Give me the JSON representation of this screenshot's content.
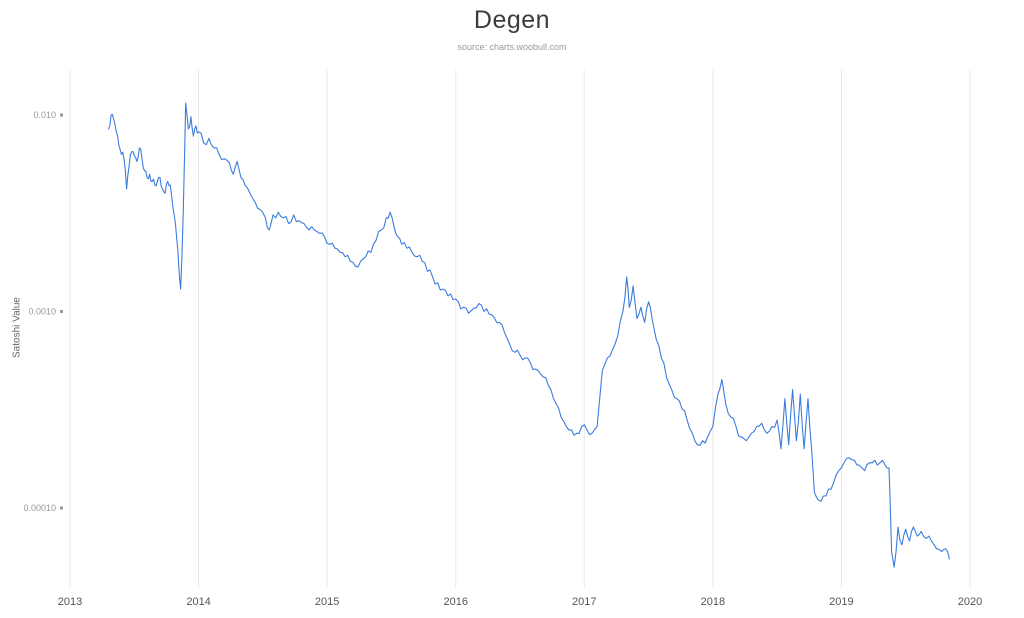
{
  "chart_data": {
    "type": "line",
    "title": "Degen",
    "source": "source: charts.woobull.com",
    "ylabel": "Satoshi Value",
    "xlabel": "",
    "y_scale": "log",
    "xlim": [
      2013,
      2020
    ],
    "ylim": [
      4e-05,
      0.013
    ],
    "x_ticks": [
      2013,
      2014,
      2015,
      2016,
      2017,
      2018,
      2019,
      2020
    ],
    "y_ticks": [
      0.01,
      0.001,
      0.0001
    ],
    "y_tick_labels": [
      "0.010",
      "0.0010",
      "0.00010"
    ],
    "grid": "vertical-only",
    "legend": "none",
    "line_color": "#3b7ddd",
    "series": [
      {
        "name": "Satoshi Value",
        "x": [
          2013.3,
          2013.32,
          2013.34,
          2013.36,
          2013.38,
          2013.4,
          2013.42,
          2013.44,
          2013.46,
          2013.48,
          2013.5,
          2013.52,
          2013.54,
          2013.56,
          2013.58,
          2013.6,
          2013.62,
          2013.64,
          2013.66,
          2013.68,
          2013.7,
          2013.72,
          2013.74,
          2013.76,
          2013.78,
          2013.8,
          2013.82,
          2013.84,
          2013.86,
          2013.88,
          2013.9,
          2013.92,
          2013.94,
          2013.96,
          2013.98,
          2014.0,
          2014.04,
          2014.08,
          2014.12,
          2014.16,
          2014.2,
          2014.24,
          2014.27,
          2014.3,
          2014.33,
          2014.36,
          2014.4,
          2014.44,
          2014.48,
          2014.52,
          2014.55,
          2014.58,
          2014.62,
          2014.66,
          2014.7,
          2014.74,
          2014.78,
          2014.82,
          2014.86,
          2014.9,
          2014.94,
          2014.98,
          2015.02,
          2015.06,
          2015.1,
          2015.14,
          2015.18,
          2015.22,
          2015.26,
          2015.3,
          2015.34,
          2015.38,
          2015.42,
          2015.46,
          2015.49,
          2015.52,
          2015.55,
          2015.58,
          2015.62,
          2015.66,
          2015.7,
          2015.74,
          2015.78,
          2015.82,
          2015.86,
          2015.9,
          2015.94,
          2015.98,
          2016.02,
          2016.06,
          2016.1,
          2016.14,
          2016.18,
          2016.22,
          2016.26,
          2016.3,
          2016.34,
          2016.38,
          2016.42,
          2016.46,
          2016.5,
          2016.54,
          2016.58,
          2016.62,
          2016.66,
          2016.7,
          2016.74,
          2016.78,
          2016.82,
          2016.86,
          2016.9,
          2016.94,
          2016.98,
          2017.02,
          2017.06,
          2017.1,
          2017.14,
          2017.18,
          2017.22,
          2017.26,
          2017.3,
          2017.33,
          2017.35,
          2017.38,
          2017.41,
          2017.44,
          2017.47,
          2017.5,
          2017.53,
          2017.56,
          2017.6,
          2017.64,
          2017.68,
          2017.72,
          2017.76,
          2017.8,
          2017.84,
          2017.88,
          2017.92,
          2017.96,
          2018.0,
          2018.04,
          2018.07,
          2018.1,
          2018.14,
          2018.18,
          2018.22,
          2018.26,
          2018.3,
          2018.34,
          2018.38,
          2018.42,
          2018.46,
          2018.5,
          2018.53,
          2018.56,
          2018.59,
          2018.62,
          2018.65,
          2018.68,
          2018.71,
          2018.74,
          2018.77,
          2018.79,
          2018.82,
          2018.86,
          2018.9,
          2018.94,
          2018.98,
          2019.02,
          2019.06,
          2019.1,
          2019.14,
          2019.18,
          2019.22,
          2019.26,
          2019.3,
          2019.34,
          2019.37,
          2019.39,
          2019.41,
          2019.44,
          2019.47,
          2019.5,
          2019.53,
          2019.56,
          2019.59,
          2019.62,
          2019.66,
          2019.7,
          2019.74,
          2019.78,
          2019.81,
          2019.84
        ],
        "y": [
          0.0085,
          0.01,
          0.0095,
          0.0082,
          0.007,
          0.0063,
          0.006,
          0.0042,
          0.0055,
          0.0065,
          0.0062,
          0.0058,
          0.0068,
          0.006,
          0.0052,
          0.0048,
          0.005,
          0.0046,
          0.0044,
          0.0046,
          0.0048,
          0.0042,
          0.004,
          0.0046,
          0.0044,
          0.0034,
          0.0028,
          0.002,
          0.0013,
          0.003,
          0.0115,
          0.0085,
          0.0098,
          0.0078,
          0.0088,
          0.0082,
          0.0072,
          0.0076,
          0.0068,
          0.0063,
          0.006,
          0.0057,
          0.005,
          0.0058,
          0.0048,
          0.0044,
          0.004,
          0.0036,
          0.0033,
          0.003,
          0.0026,
          0.0031,
          0.0032,
          0.003,
          0.0028,
          0.0031,
          0.0029,
          0.0028,
          0.0026,
          0.0026,
          0.0025,
          0.0024,
          0.0022,
          0.0021,
          0.002,
          0.0019,
          0.0018,
          0.0017,
          0.0018,
          0.0019,
          0.002,
          0.0023,
          0.0026,
          0.003,
          0.0032,
          0.0027,
          0.0024,
          0.0022,
          0.0021,
          0.002,
          0.0019,
          0.0018,
          0.0016,
          0.0015,
          0.0014,
          0.0013,
          0.0012,
          0.00115,
          0.00112,
          0.00105,
          0.00098,
          0.00104,
          0.0011,
          0.001,
          0.00097,
          0.00093,
          0.00088,
          0.00078,
          0.00068,
          0.00062,
          0.0006,
          0.00058,
          0.00055,
          0.00051,
          0.00048,
          0.00046,
          0.0004,
          0.00034,
          0.00029,
          0.00026,
          0.00025,
          0.00024,
          0.00026,
          0.00025,
          0.00024,
          0.00026,
          0.0005,
          0.00058,
          0.00064,
          0.00075,
          0.001,
          0.0015,
          0.00105,
          0.00135,
          0.00092,
          0.00105,
          0.00088,
          0.00112,
          0.0009,
          0.00072,
          0.00058,
          0.00046,
          0.0004,
          0.00036,
          0.00032,
          0.00028,
          0.00024,
          0.00021,
          0.00022,
          0.00023,
          0.00026,
          0.00038,
          0.00045,
          0.00034,
          0.00029,
          0.00026,
          0.00023,
          0.00022,
          0.00024,
          0.00026,
          0.00027,
          0.00024,
          0.00026,
          0.00028,
          0.0002,
          0.00036,
          0.00021,
          0.0004,
          0.00022,
          0.00038,
          0.0002,
          0.00036,
          0.00019,
          0.00012,
          0.00011,
          0.000115,
          0.000125,
          0.000135,
          0.000155,
          0.00017,
          0.00018,
          0.000175,
          0.000165,
          0.000155,
          0.00017,
          0.000175,
          0.00017,
          0.000165,
          0.00016,
          6e-05,
          5e-05,
          8e-05,
          6.5e-05,
          7.8e-05,
          6.8e-05,
          8e-05,
          7.2e-05,
          7.6e-05,
          7e-05,
          6.8e-05,
          6.2e-05,
          6e-05,
          6.2e-05,
          5.5e-05
        ]
      }
    ]
  }
}
